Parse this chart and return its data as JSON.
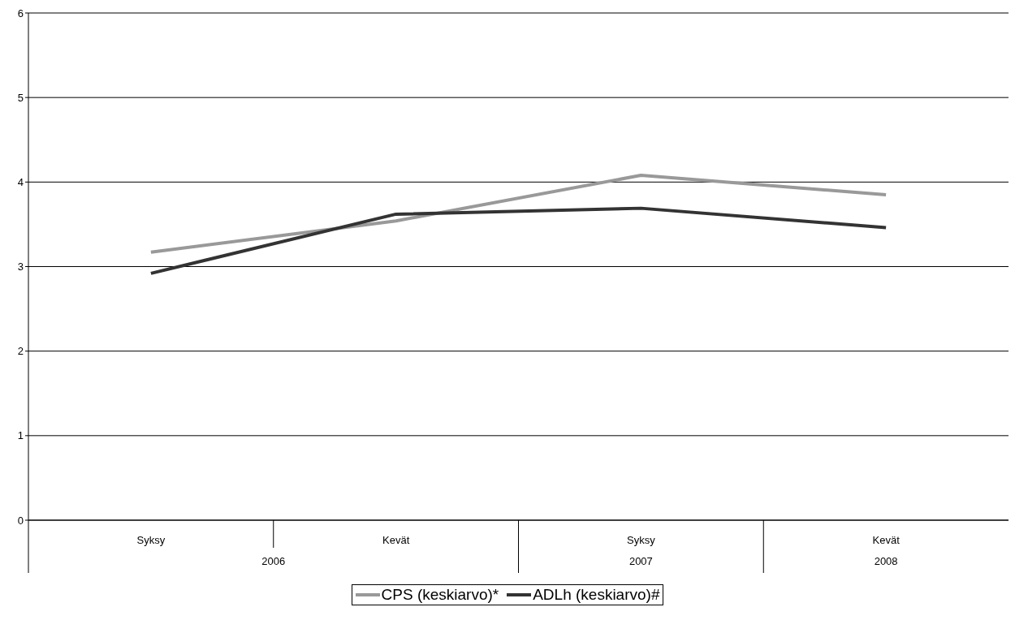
{
  "chart_data": {
    "type": "line",
    "categories": [
      "Syksy",
      "Kevät",
      "Syksy",
      "Kevät"
    ],
    "series": [
      {
        "name": "CPS (keskiarvo)*",
        "color": "#999999",
        "values": [
          3.17,
          3.54,
          4.08,
          3.85
        ]
      },
      {
        "name": "ADLh (keskiarvo)#",
        "color": "#333333",
        "values": [
          2.92,
          3.62,
          3.69,
          3.46
        ]
      }
    ],
    "annotations": [
      "2006",
      "2007",
      "2008"
    ],
    "ylim": [
      0,
      6
    ],
    "yticks": [
      0,
      1,
      2,
      3,
      4,
      5,
      6
    ],
    "grid": "y",
    "legend": "bottom",
    "marker": "none",
    "line_style": "solid"
  }
}
